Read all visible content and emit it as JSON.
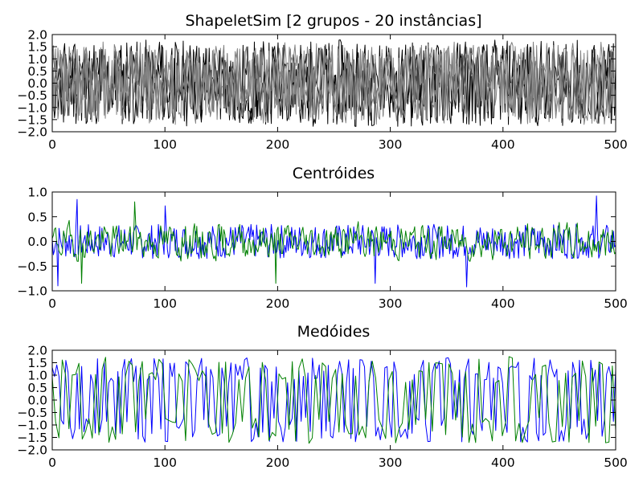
{
  "chart_data": [
    {
      "type": "line",
      "title": "ShapeletSim [2 grupos - 20 instâncias]",
      "xlabel": "",
      "ylabel": "",
      "xlim": [
        0,
        500
      ],
      "ylim": [
        -2.0,
        2.0
      ],
      "xticks": [
        "0",
        "100",
        "200",
        "300",
        "400",
        "500"
      ],
      "yticks": [
        "2.0",
        "1.5",
        "1.0",
        "0.5",
        "0.0",
        "−0.5",
        "−1.0",
        "−1.5",
        "−2.0"
      ],
      "grid": false,
      "legend": "none",
      "series": [
        {
          "color": "#000000",
          "n_points": 500,
          "amplitude": 1.8,
          "seed": 11,
          "roughness": "noise"
        },
        {
          "color": "#000000",
          "n_points": 500,
          "amplitude": 1.7,
          "seed": 23,
          "roughness": "noise"
        },
        {
          "color": "#808080",
          "n_points": 500,
          "amplitude": 1.6,
          "seed": 37,
          "roughness": "noise"
        },
        {
          "color": "#808080",
          "n_points": 500,
          "amplitude": 1.7,
          "seed": 41,
          "roughness": "noise"
        },
        {
          "color": "#808080",
          "n_points": 500,
          "amplitude": 1.5,
          "seed": 53,
          "roughness": "noise"
        }
      ]
    },
    {
      "type": "line",
      "title": "Centróides",
      "xlabel": "",
      "ylabel": "",
      "xlim": [
        0,
        500
      ],
      "ylim": [
        -1.0,
        1.0
      ],
      "xticks": [
        "0",
        "100",
        "200",
        "300",
        "400",
        "500"
      ],
      "yticks": [
        "1.0",
        "0.5",
        "0.0",
        "−0.5",
        "−1.0"
      ],
      "grid": false,
      "legend": "none",
      "series": [
        {
          "color": "#0000ff",
          "n_points": 500,
          "amplitude": 0.35,
          "seed": 7,
          "roughness": "noise",
          "spikes": [
            [
              5,
              -0.9
            ],
            [
              22,
              0.85
            ],
            [
              100,
              0.72
            ],
            [
              287,
              -0.85
            ],
            [
              368,
              -0.92
            ],
            [
              483,
              0.92
            ]
          ]
        },
        {
          "color": "#008000",
          "n_points": 500,
          "amplitude": 0.35,
          "seed": 19,
          "roughness": "smooth",
          "spikes": [
            [
              26,
              -0.85
            ],
            [
              73,
              0.8
            ],
            [
              198,
              -0.85
            ]
          ]
        }
      ]
    },
    {
      "type": "line",
      "title": "Medóides",
      "xlabel": "",
      "ylabel": "",
      "xlim": [
        0,
        500
      ],
      "ylim": [
        -2.0,
        2.0
      ],
      "xticks": [
        "0",
        "100",
        "200",
        "300",
        "400",
        "500"
      ],
      "yticks": [
        "2.0",
        "1.5",
        "1.0",
        "0.5",
        "0.0",
        "−0.5",
        "−1.0",
        "−1.5",
        "−2.0"
      ],
      "grid": false,
      "legend": "none",
      "series": [
        {
          "color": "#0000ff",
          "n_points": 250,
          "amplitude": 1.7,
          "seed": 29,
          "roughness": "oscillating"
        },
        {
          "color": "#008000",
          "n_points": 170,
          "amplitude": 1.75,
          "seed": 31,
          "roughness": "oscillating"
        }
      ]
    }
  ]
}
